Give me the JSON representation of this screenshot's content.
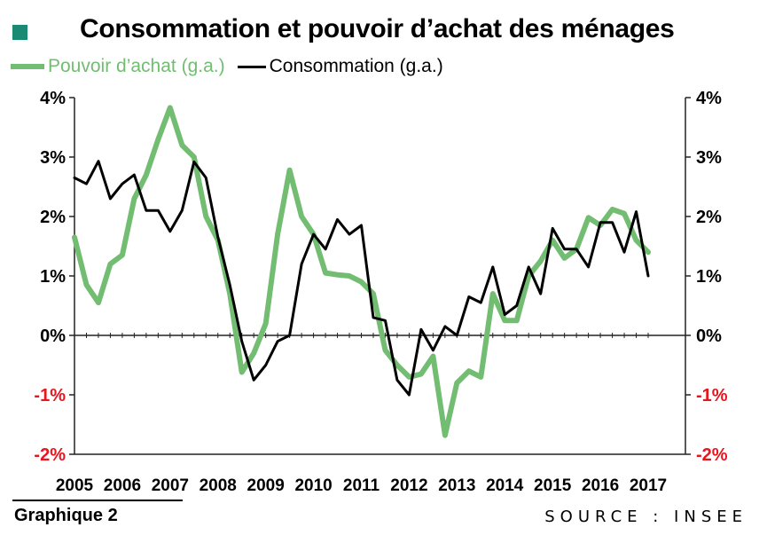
{
  "title": "Consommation et pouvoir d’achat des ménages",
  "footer": {
    "label": "Graphique 2",
    "source": "SOURCE : INSEE"
  },
  "colors": {
    "pouvoir_achat": "#72bd72",
    "consommation": "#000000",
    "negative_tick": "#e8141e",
    "title_marker": "#1a8a73"
  },
  "chart_data": {
    "type": "line",
    "title": "Consommation et pouvoir d’achat des ménages",
    "xlabel": "",
    "ylabel": "",
    "x_tick_labels": [
      "2005",
      "2006",
      "2007",
      "2008",
      "2009",
      "2010",
      "2011",
      "2012",
      "2013",
      "2014",
      "2015",
      "2016",
      "2017"
    ],
    "y_tick_labels": [
      "4%",
      "3%",
      "2%",
      "1%",
      "0%",
      "-1%",
      "-2%"
    ],
    "ylim": [
      -2,
      4
    ],
    "y_ticks": [
      4,
      3,
      2,
      1,
      0,
      -1,
      -2
    ],
    "x_unit": "quarter",
    "x_start": "2005-Q1",
    "grid": false,
    "legend_position": "top-left",
    "series": [
      {
        "name": "Pouvoir d’achat (g.a.)",
        "color": "#72bd72",
        "values": [
          1.65,
          0.85,
          0.55,
          1.2,
          1.35,
          2.3,
          2.7,
          3.3,
          3.83,
          3.2,
          3.0,
          2.0,
          1.6,
          0.7,
          -0.62,
          -0.3,
          0.2,
          1.7,
          2.78,
          2.0,
          1.7,
          1.05,
          1.02,
          1.0,
          0.9,
          0.7,
          -0.25,
          -0.5,
          -0.7,
          -0.65,
          -0.35,
          -1.68,
          -0.8,
          -0.6,
          -0.7,
          0.7,
          0.25,
          0.25,
          1.0,
          1.25,
          1.6,
          1.3,
          1.45,
          1.98,
          1.85,
          2.12,
          2.05,
          1.6,
          1.4
        ]
      },
      {
        "name": "Consommation (g.a.)",
        "color": "#000000",
        "values": [
          2.65,
          2.55,
          2.93,
          2.3,
          2.55,
          2.7,
          2.1,
          2.1,
          1.75,
          2.1,
          2.92,
          2.65,
          1.65,
          0.85,
          -0.1,
          -0.75,
          -0.5,
          -0.1,
          0.0,
          1.2,
          1.7,
          1.45,
          1.95,
          1.7,
          1.85,
          0.3,
          0.25,
          -0.75,
          -1.0,
          0.1,
          -0.25,
          0.15,
          0.0,
          0.65,
          0.55,
          1.15,
          0.35,
          0.5,
          1.15,
          0.7,
          1.8,
          1.45,
          1.45,
          1.15,
          1.9,
          1.9,
          1.4,
          2.08,
          1.0
        ]
      }
    ]
  }
}
